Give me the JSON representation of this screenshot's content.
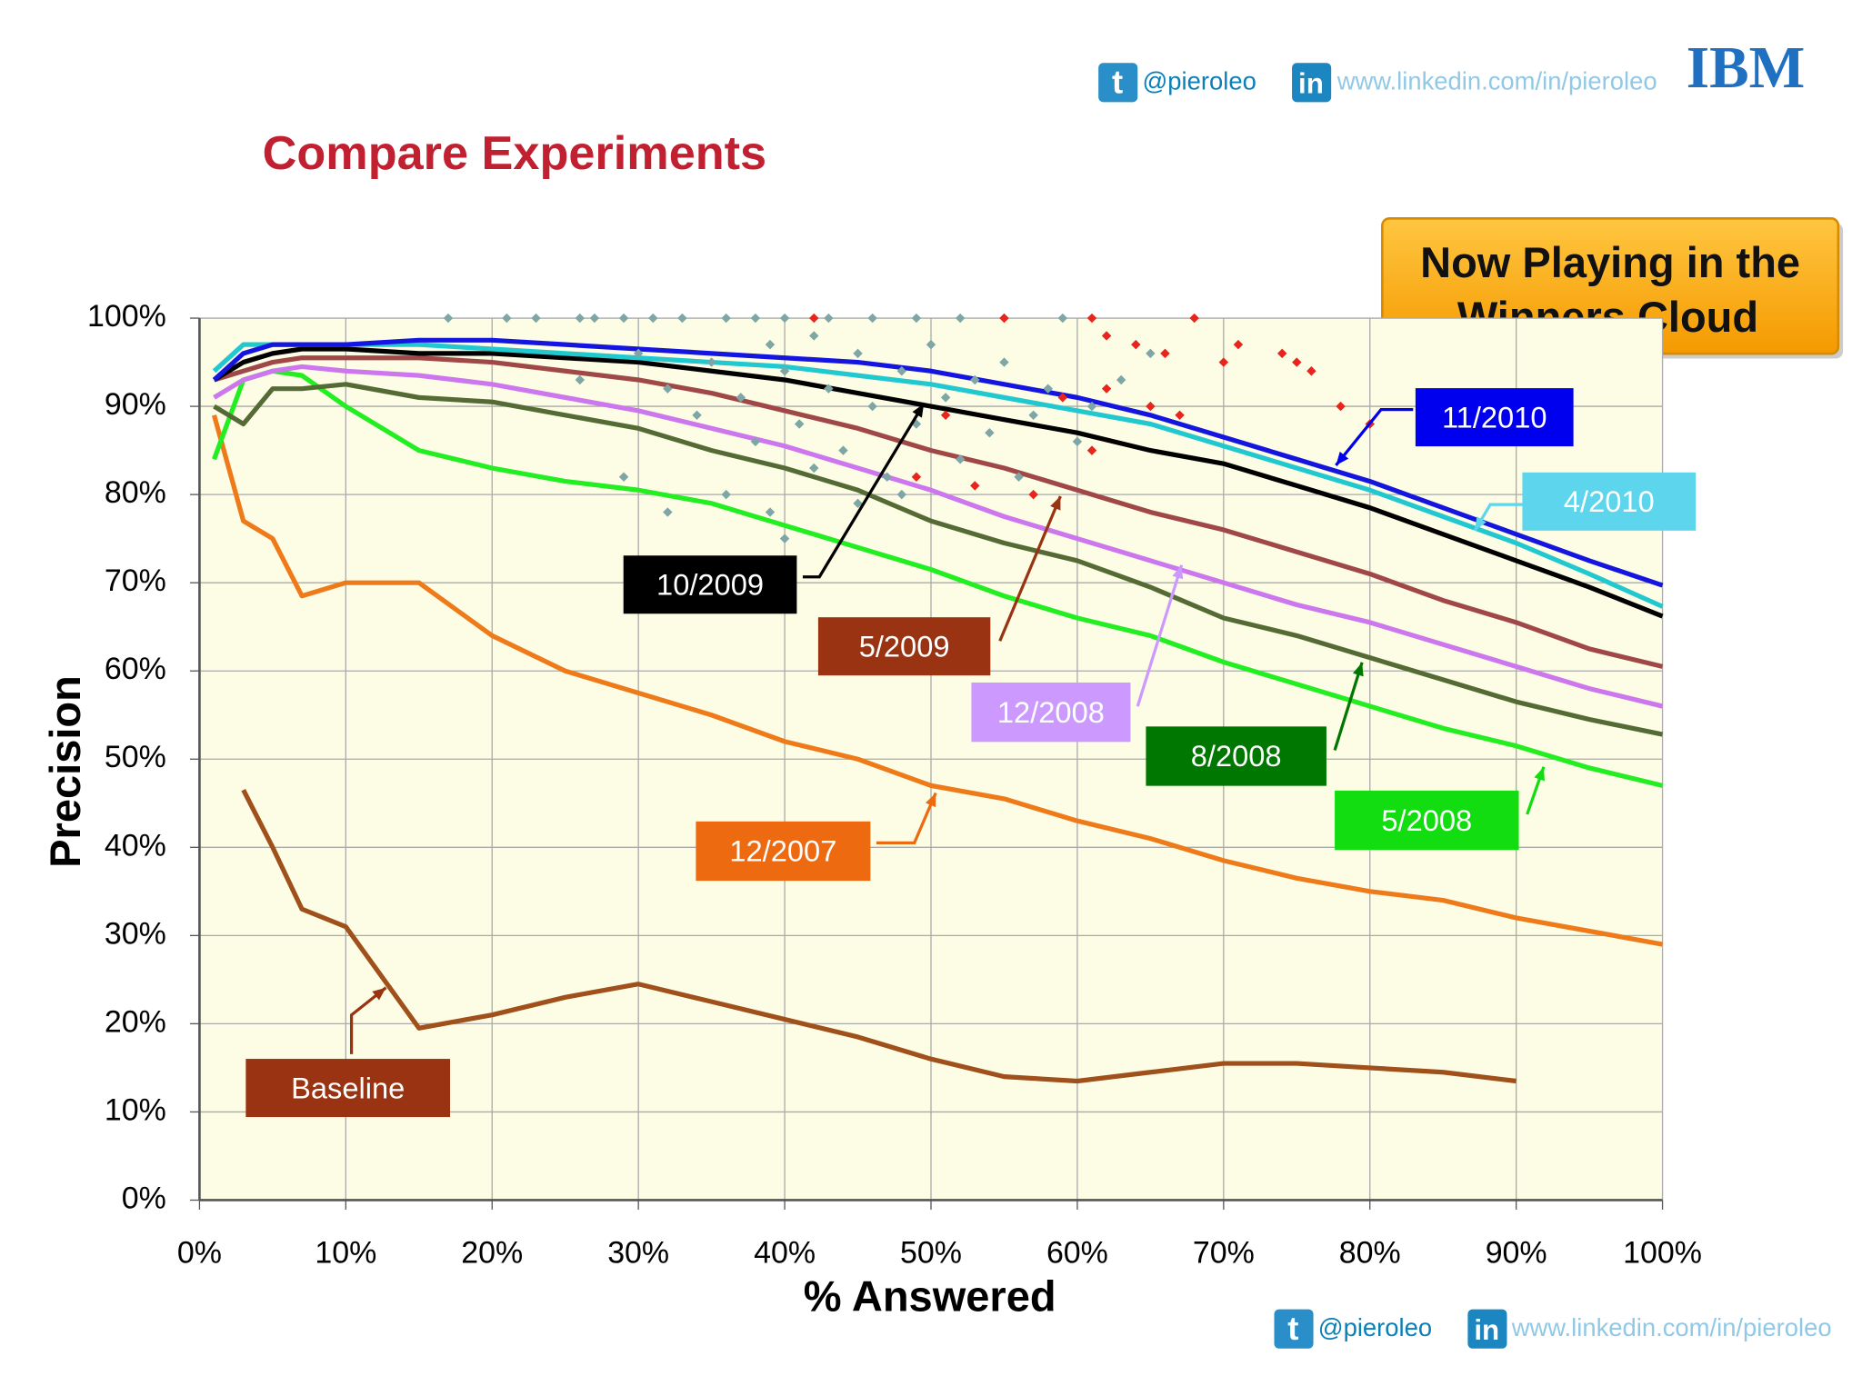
{
  "header": {
    "twitter_icon": "t",
    "twitter": "@pieroleo",
    "linkedin_icon": "in",
    "linkedin": "www.linkedin.com/in/pieroleo",
    "logo": "IBM"
  },
  "chart_data": {
    "type": "line",
    "title": "Compare Experiments",
    "callout": [
      "Now Playing in the",
      "Winners Cloud"
    ],
    "xlabel": "% Answered",
    "ylabel": "Precision",
    "xlim": [
      0,
      100
    ],
    "ylim": [
      0,
      100
    ],
    "xticks": [
      {
        "value": 0,
        "label": "0%"
      },
      {
        "value": 10,
        "label": "10%"
      },
      {
        "value": 20,
        "label": "20%"
      },
      {
        "value": 30,
        "label": "30%"
      },
      {
        "value": 40,
        "label": "40%"
      },
      {
        "value": 50,
        "label": "50%"
      },
      {
        "value": 60,
        "label": "60%"
      },
      {
        "value": 70,
        "label": "70%"
      },
      {
        "value": 80,
        "label": "80%"
      },
      {
        "value": 90,
        "label": "90%"
      },
      {
        "value": 100,
        "label": "100%"
      }
    ],
    "yticks": [
      {
        "value": 0,
        "label": "0%"
      },
      {
        "value": 10,
        "label": "10%"
      },
      {
        "value": 20,
        "label": "20%"
      },
      {
        "value": 30,
        "label": "30%"
      },
      {
        "value": 40,
        "label": "40%"
      },
      {
        "value": 50,
        "label": "50%"
      },
      {
        "value": 60,
        "label": "60%"
      },
      {
        "value": 70,
        "label": "70%"
      },
      {
        "value": 80,
        "label": "80%"
      },
      {
        "value": 90,
        "label": "90%"
      },
      {
        "value": 100,
        "label": "100%"
      }
    ],
    "grid": true,
    "x": [
      1,
      3,
      5,
      7,
      10,
      15,
      20,
      25,
      30,
      35,
      40,
      45,
      50,
      55,
      60,
      65,
      70,
      75,
      80,
      85,
      90,
      95,
      100
    ],
    "series": [
      {
        "name": "11/2010",
        "color": "#1515e0",
        "box_color": "#0000ee",
        "values": [
          93,
          96,
          97,
          97,
          97,
          97.5,
          97.5,
          97,
          96.5,
          96,
          95.5,
          95,
          94,
          92.5,
          91,
          89,
          86.5,
          84,
          81.5,
          78.5,
          75.5,
          72.5,
          69.7
        ]
      },
      {
        "name": "4/2010",
        "color": "#22c8d0",
        "box_color": "#5dd5ec",
        "values": [
          94,
          97,
          97,
          97,
          97,
          97,
          96.5,
          96,
          95.5,
          95,
          94.5,
          93.5,
          92.5,
          91,
          89.5,
          88,
          85.5,
          83,
          80.5,
          77.5,
          74.5,
          71,
          67.3
        ]
      },
      {
        "name": "10/2009",
        "color": "#000000",
        "box_color": "#000000",
        "values": [
          93,
          95,
          96,
          96.5,
          96.5,
          96,
          96,
          95.5,
          95,
          94,
          93,
          91.5,
          90,
          88.5,
          87,
          85,
          83.5,
          81,
          78.5,
          75.5,
          72.5,
          69.5,
          66.2
        ]
      },
      {
        "name": "5/2009",
        "color": "#a04848",
        "box_color": "#993311",
        "values": [
          93,
          94,
          95,
          95.5,
          95.5,
          95.5,
          95,
          94,
          93,
          91.5,
          89.5,
          87.5,
          85,
          83,
          80.5,
          78,
          76,
          73.5,
          71,
          68,
          65.5,
          62.5,
          60.5
        ]
      },
      {
        "name": "12/2008",
        "color": "#cc77ee",
        "box_color": "#cc99ff",
        "values": [
          91,
          93,
          94,
          94.5,
          94,
          93.5,
          92.5,
          91,
          89.5,
          87.5,
          85.5,
          83,
          80.5,
          77.5,
          75,
          72.5,
          70,
          67.5,
          65.5,
          63,
          60.5,
          58,
          56
        ]
      },
      {
        "name": "8/2008",
        "color": "#556b35",
        "box_color": "#007700",
        "values": [
          90,
          88,
          92,
          92,
          92.5,
          91,
          90.5,
          89,
          87.5,
          85,
          83,
          80.5,
          77,
          74.5,
          72.5,
          69.5,
          66,
          64,
          61.5,
          59,
          56.5,
          54.5,
          52.8
        ]
      },
      {
        "name": "5/2008",
        "color": "#22ee22",
        "box_color": "#11dd11",
        "values": [
          84,
          93,
          94,
          93.5,
          90,
          85,
          83,
          81.5,
          80.5,
          79,
          76.5,
          74,
          71.5,
          68.5,
          66,
          64,
          61,
          58.5,
          56,
          53.5,
          51.5,
          49,
          47
        ]
      },
      {
        "name": "12/2007",
        "color": "#ee7a1a",
        "box_color": "#ee6a10",
        "values": [
          89,
          77,
          75,
          68.5,
          70,
          70,
          64,
          60,
          57.5,
          55,
          52,
          50,
          47,
          45.5,
          43,
          41,
          38.5,
          36.5,
          35,
          34,
          32,
          30.5,
          29
        ]
      },
      {
        "name": "Baseline",
        "color": "#a0501a",
        "box_color": "#993311",
        "values": [
          null,
          46.5,
          40,
          33,
          31,
          19.5,
          21,
          23,
          24.5,
          22.5,
          20.5,
          18.5,
          16,
          14,
          13.5,
          14.5,
          15.5,
          15.5,
          15,
          14.5,
          13.5,
          null,
          null
        ]
      }
    ],
    "points": [
      {
        "type": "scatter",
        "color": "#7fa6a6",
        "x": [
          17,
          21,
          23,
          26,
          27,
          29,
          31,
          33,
          36,
          38,
          40,
          43,
          46,
          49,
          52,
          55,
          59,
          26,
          30,
          32,
          34,
          35,
          37,
          38,
          39,
          40,
          41,
          42,
          43,
          44,
          45,
          46,
          47,
          48,
          49,
          50,
          51,
          53,
          54,
          55,
          57,
          58,
          60,
          61,
          63,
          65,
          36,
          39,
          42,
          45,
          32,
          29,
          52,
          56,
          48,
          40
        ],
        "values": [
          100,
          100,
          100,
          100,
          100,
          100,
          100,
          100,
          100,
          100,
          100,
          100,
          100,
          100,
          100,
          100,
          100,
          93,
          96,
          92,
          89,
          95,
          91,
          86,
          97,
          94,
          88,
          98,
          92,
          85,
          96,
          90,
          82,
          94,
          88,
          97,
          91,
          93,
          87,
          95,
          89,
          92,
          86,
          90,
          93,
          96,
          80,
          78,
          83,
          79,
          78,
          82,
          84,
          82,
          80,
          75
        ]
      },
      {
        "type": "scatter",
        "color": "#e8241c",
        "x": [
          42,
          55,
          61,
          68,
          62,
          64,
          66,
          70,
          71,
          74,
          75,
          76,
          78,
          80,
          62,
          65,
          67,
          59,
          51,
          49,
          53,
          61,
          57
        ],
        "values": [
          100,
          100,
          100,
          100,
          98,
          97,
          96,
          95,
          97,
          96,
          95,
          94,
          90,
          88,
          92,
          90,
          89,
          91,
          89,
          82,
          81,
          85,
          80
        ]
      }
    ]
  }
}
